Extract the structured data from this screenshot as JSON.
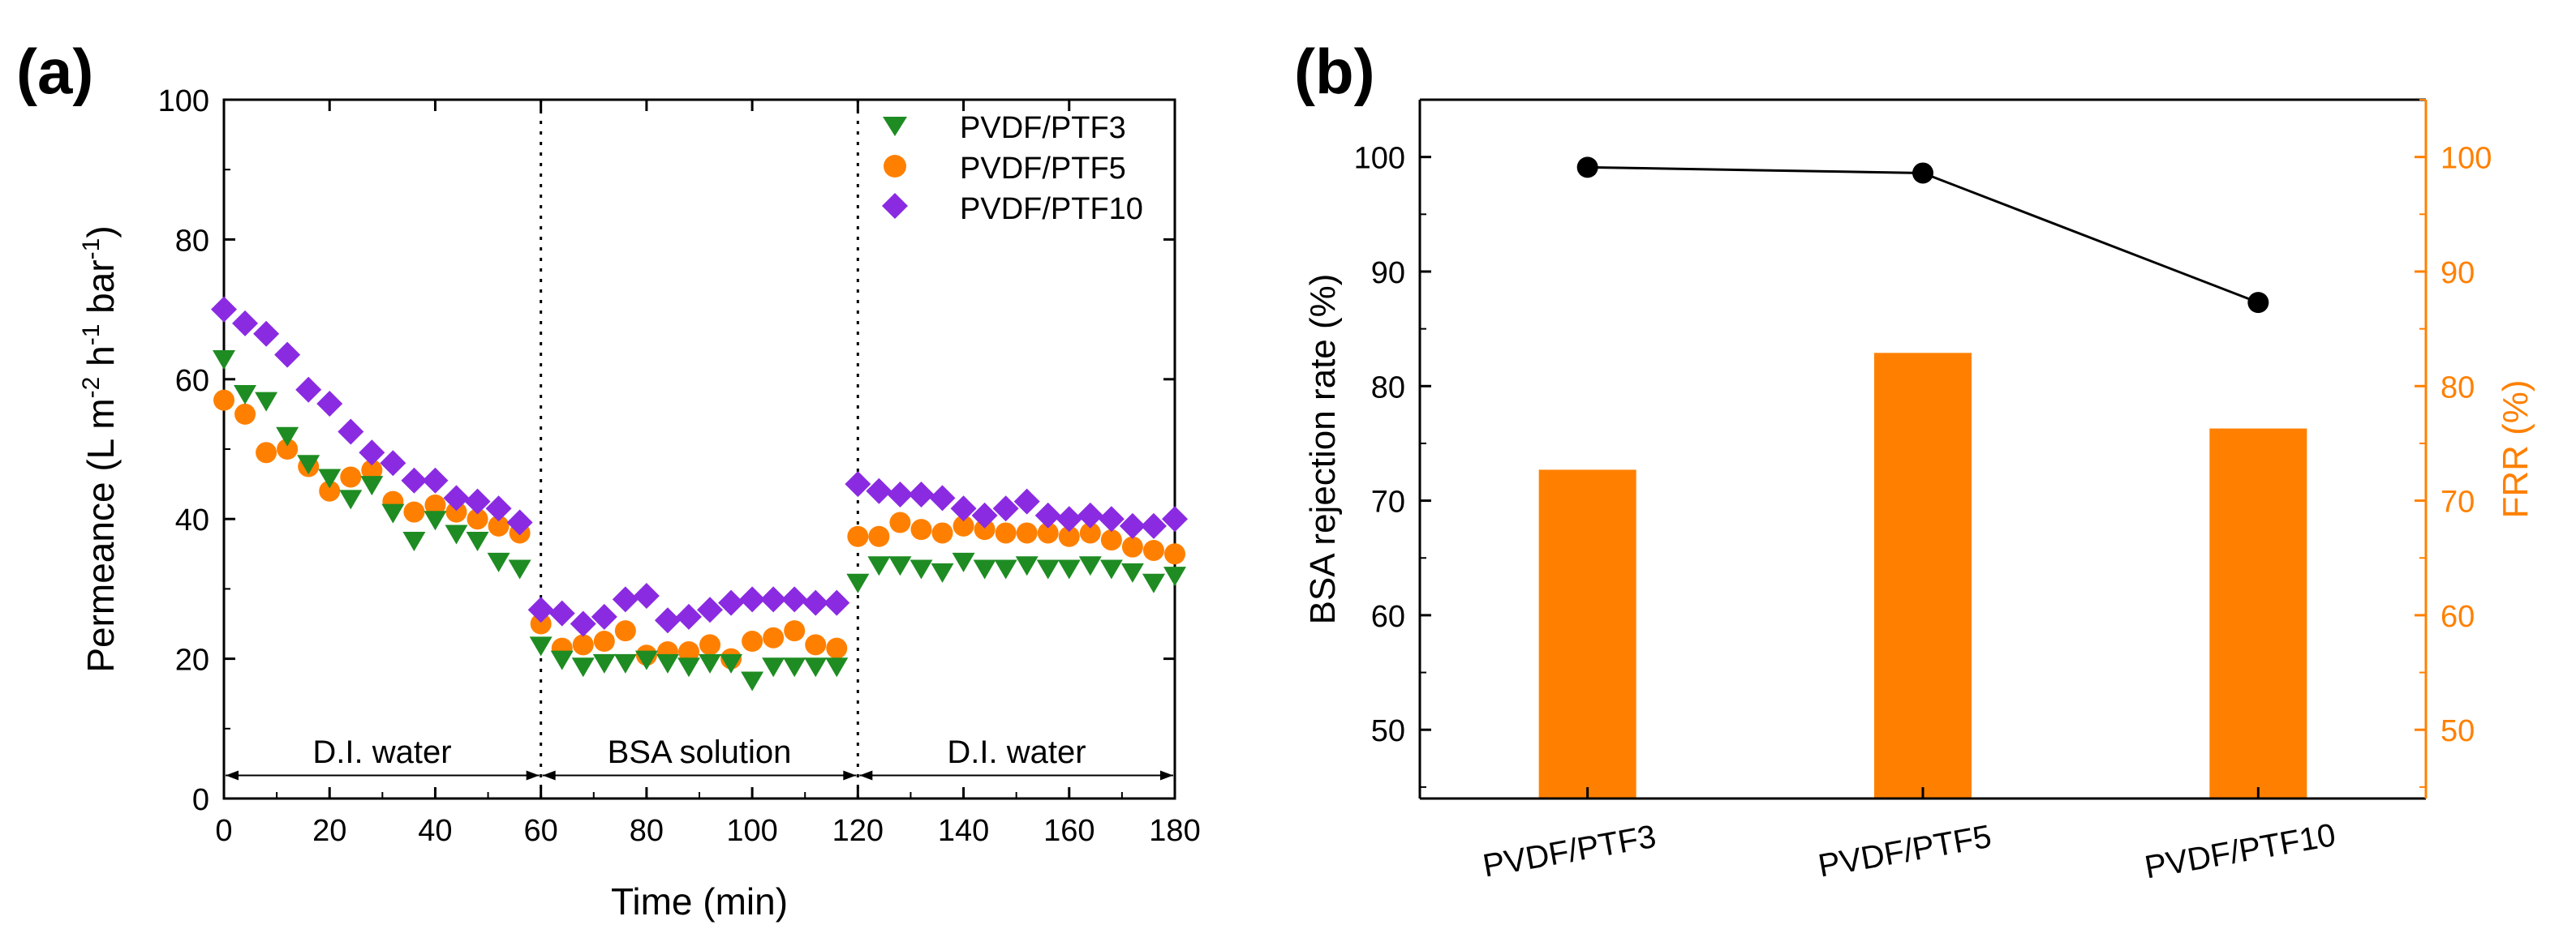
{
  "panel_a": {
    "label": "(a)",
    "ylabel_parts": [
      "Permeance (L m",
      "-2",
      " h",
      "-1",
      " bar",
      "-1",
      ")"
    ],
    "region_labels": [
      "D.I. water",
      "BSA solution",
      "D.I. water"
    ]
  },
  "panel_b": {
    "label": "(b)"
  },
  "colors": {
    "green": "#1e8c22",
    "orange": "#ff8000",
    "purple": "#8a2be2",
    "black": "#000000"
  },
  "chart_data": [
    {
      "type": "scatter",
      "id": "permeance",
      "title": "",
      "xlabel": "Time (min)",
      "ylabel": "Permeance (L m-2 h-1 bar-1)",
      "xlim": [
        0,
        180
      ],
      "ylim": [
        0,
        100
      ],
      "xticks": [
        0,
        20,
        40,
        60,
        80,
        100,
        120,
        140,
        160,
        180
      ],
      "yticks": [
        0,
        20,
        40,
        60,
        80,
        100
      ],
      "phase_boundaries": [
        60,
        120
      ],
      "phases": [
        "D.I. water",
        "BSA solution",
        "D.I. water"
      ],
      "legend_position": "top-right",
      "series": [
        {
          "name": "PVDF/PTF3",
          "marker": "triangle-down",
          "color": "#1e8c22",
          "x": [
            0,
            4,
            8,
            12,
            16,
            20,
            24,
            28,
            32,
            36,
            40,
            44,
            48,
            52,
            56,
            60,
            64,
            68,
            72,
            76,
            80,
            84,
            88,
            92,
            96,
            100,
            104,
            108,
            112,
            116,
            120,
            124,
            128,
            132,
            136,
            140,
            144,
            148,
            152,
            156,
            160,
            164,
            168,
            172,
            176,
            180
          ],
          "y": [
            63,
            58,
            57,
            52,
            48,
            46,
            43,
            45,
            41,
            37,
            40,
            38,
            37,
            34,
            33,
            22,
            20,
            19,
            19.5,
            19.5,
            20,
            19.5,
            19,
            19.5,
            19.5,
            17,
            19,
            19,
            19,
            19,
            31,
            33.5,
            33.5,
            33,
            32.5,
            34,
            33,
            33,
            33.5,
            33,
            33,
            33.5,
            33,
            32.5,
            31,
            32
          ]
        },
        {
          "name": "PVDF/PTF5",
          "marker": "circle",
          "color": "#ff8000",
          "x": [
            0,
            4,
            8,
            12,
            16,
            20,
            24,
            28,
            32,
            36,
            40,
            44,
            48,
            52,
            56,
            60,
            64,
            68,
            72,
            76,
            80,
            84,
            88,
            92,
            96,
            100,
            104,
            108,
            112,
            116,
            120,
            124,
            128,
            132,
            136,
            140,
            144,
            148,
            152,
            156,
            160,
            164,
            168,
            172,
            176,
            180
          ],
          "y": [
            57,
            55,
            49.5,
            50,
            47.5,
            44,
            46,
            47,
            42.5,
            41,
            42,
            41,
            40,
            39,
            38,
            25,
            21.5,
            22,
            22.5,
            24,
            20.5,
            21,
            21,
            22,
            20,
            22.5,
            23,
            24,
            22,
            21.5,
            37.5,
            37.5,
            39.5,
            38.5,
            38,
            39,
            38.5,
            38,
            38,
            38,
            37.5,
            38,
            37,
            36,
            35.5,
            35
          ]
        },
        {
          "name": "PVDF/PTF10",
          "marker": "diamond",
          "color": "#8a2be2",
          "x": [
            0,
            4,
            8,
            12,
            16,
            20,
            24,
            28,
            32,
            36,
            40,
            44,
            48,
            52,
            56,
            60,
            64,
            68,
            72,
            76,
            80,
            84,
            88,
            92,
            96,
            100,
            104,
            108,
            112,
            116,
            120,
            124,
            128,
            132,
            136,
            140,
            144,
            148,
            152,
            156,
            160,
            164,
            168,
            172,
            176,
            180
          ],
          "y": [
            70,
            68,
            66.5,
            63.5,
            58.5,
            56.5,
            52.5,
            49.5,
            48,
            45.5,
            45.5,
            43,
            42.5,
            41.5,
            39.5,
            27,
            26.5,
            25,
            26,
            28.5,
            29,
            25.5,
            26,
            27,
            28,
            28.5,
            28.5,
            28.5,
            28,
            28,
            45,
            44,
            43.5,
            43.5,
            43,
            41.5,
            40.5,
            41.5,
            42.5,
            40.5,
            40,
            40.5,
            40,
            39,
            39,
            40
          ]
        }
      ]
    },
    {
      "type": "bar",
      "id": "rejection_frr",
      "title": "",
      "xlabel": "",
      "categories": [
        "PVDF/PTF3",
        "PVDF/PTF5",
        "PVDF/PTF10"
      ],
      "ylabel": "BSA rejection rate (%)",
      "ylim": [
        44,
        105
      ],
      "yticks": [
        50,
        60,
        70,
        80,
        90,
        100
      ],
      "ylabel_right": "FRR (%)",
      "ylim_right": [
        44,
        105
      ],
      "yticks_right": [
        50,
        60,
        70,
        80,
        90,
        100
      ],
      "series": [
        {
          "name": "FRR (%)",
          "type": "bar",
          "axis": "right",
          "color": "#ff8000",
          "values": [
            72.7,
            82.9,
            76.3
          ]
        },
        {
          "name": "BSA rejection rate (%)",
          "type": "line",
          "axis": "left",
          "color": "#000000",
          "values": [
            99.1,
            98.6,
            87.3
          ]
        }
      ]
    }
  ]
}
